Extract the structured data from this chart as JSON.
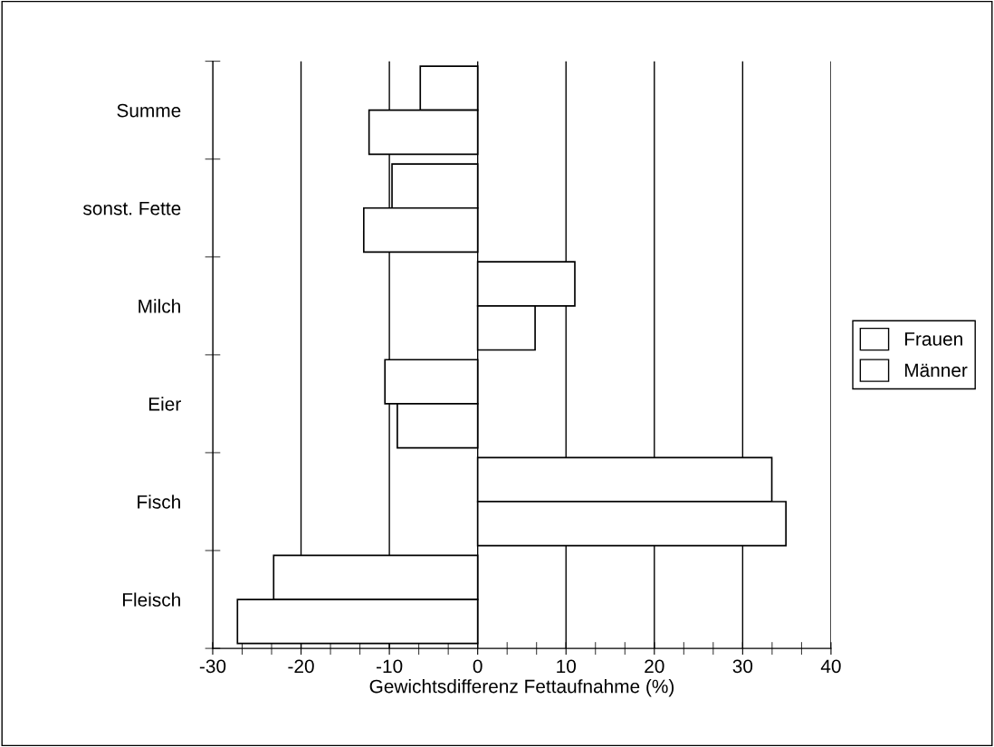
{
  "chart_data": {
    "type": "bar",
    "orientation": "horizontal",
    "xlabel": "Gewichtsdifferenz Fettaufnahme (%)",
    "categories": [
      "Summe",
      "sonst. Fette",
      "Milch",
      "Eier",
      "Fisch",
      "Fleisch"
    ],
    "series": [
      {
        "name": "Frauen",
        "color": "#ffffff",
        "values": [
          -6.5,
          -9.7,
          11.0,
          -10.5,
          33.3,
          -23.1
        ]
      },
      {
        "name": "Männer",
        "color": "#ffffff",
        "values": [
          -12.3,
          -12.9,
          6.5,
          -9.1,
          34.9,
          -27.2
        ]
      }
    ],
    "xlim": [
      -30,
      40
    ],
    "xticks": [
      -30,
      -20,
      -10,
      0,
      10,
      20,
      30,
      40
    ],
    "grid": "x",
    "legend": "right"
  }
}
